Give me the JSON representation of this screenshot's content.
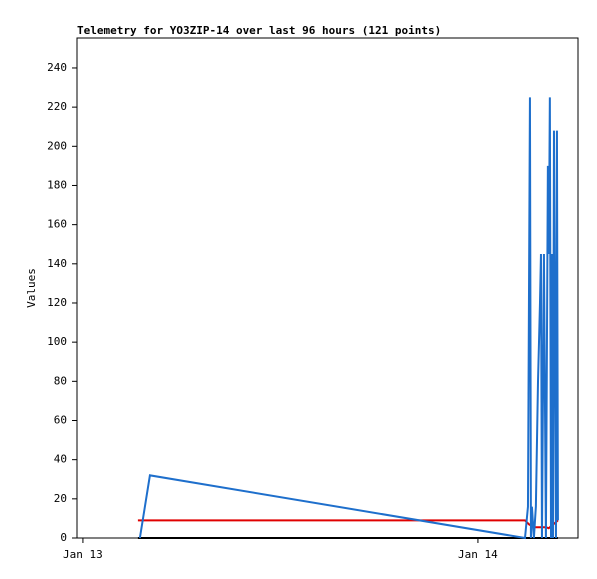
{
  "chart_data": {
    "type": "line",
    "title": "Telemetry for YO3ZIP-14 over last 96 hours (121 points)",
    "y_label": "Values",
    "xlim": [
      -0.36,
      30.08
    ],
    "xticks": [
      {
        "value": 0,
        "label": "Jan 13"
      },
      {
        "value": 24,
        "label": "Jan 14"
      }
    ],
    "ylim": [
      0,
      255.3
    ],
    "yticks": [
      0,
      20,
      40,
      60,
      80,
      100,
      120,
      140,
      160,
      180,
      200,
      220,
      240
    ],
    "grid": false,
    "series": [
      {
        "color": "#000000",
        "x": [
          3.34,
          28.86
        ],
        "values": [
          0,
          0
        ]
      },
      {
        "color": "#e00000",
        "x": [
          3.34,
          26.86,
          27.1,
          27.4,
          28.13,
          28.3,
          28.86
        ],
        "values": [
          9,
          9,
          7,
          5.5,
          5.5,
          5,
          9
        ]
      },
      {
        "color": "#1e6fcc",
        "x": [
          3.46,
          4.07,
          26.86,
          27.04,
          27.16,
          27.22,
          27.28,
          27.4,
          27.52,
          27.65,
          27.77,
          27.83,
          27.89,
          28.01,
          28.13,
          28.25,
          28.31,
          28.37,
          28.44,
          28.5,
          28.56,
          28.62,
          28.74,
          28.8,
          28.86
        ],
        "values": [
          0,
          32,
          0,
          16,
          225,
          0,
          16,
          0,
          16,
          80,
          120,
          145,
          0,
          145,
          0,
          190,
          145,
          225,
          0,
          145,
          0,
          208,
          0,
          208,
          9
        ]
      }
    ]
  }
}
